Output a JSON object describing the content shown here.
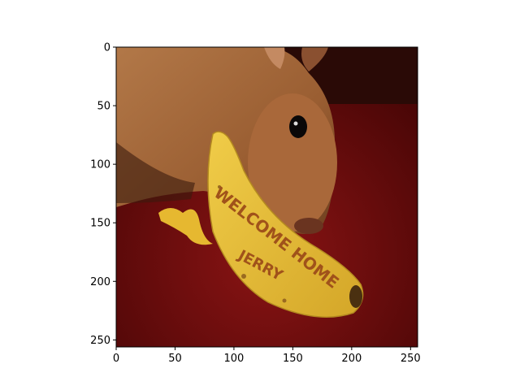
{
  "figure": {
    "background": "#ffffff"
  },
  "image": {
    "subject": "brown rabbit sniffing a banana on a red carpet",
    "banana_text_line1": "WELCOME HOME",
    "banana_text_line2": "JERRY",
    "colors": {
      "carpet": "#7a1010",
      "carpet_dark": "#4a0606",
      "rabbit_fur": "#a86a3c",
      "rabbit_fur_dark": "#6e3f1f",
      "banana": "#e8c23a",
      "banana_shade": "#c49a1c",
      "banana_text": "#a0521a"
    }
  },
  "axes": {
    "x_ticks": [
      "0",
      "50",
      "100",
      "150",
      "200",
      "250"
    ],
    "y_ticks": [
      "0",
      "50",
      "100",
      "150",
      "200",
      "250"
    ],
    "x_range": [
      0,
      256
    ],
    "y_range": [
      0,
      256
    ],
    "y_inverted": true
  }
}
